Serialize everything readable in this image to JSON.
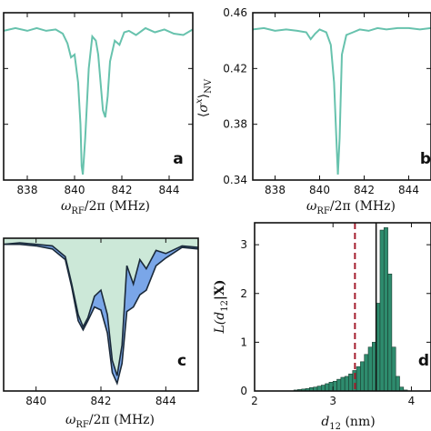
{
  "colors": {
    "teal": "#67c2ad",
    "fill_light": "#cce8d8",
    "fill_blue": "#7aa6e8",
    "bar": "#2e8c6e",
    "dashed_red": "#a51e2e",
    "axis": "#111111"
  },
  "chart_data": [
    {
      "panel": "a",
      "type": "line",
      "letter": "a",
      "xlabel_main": "ω",
      "xlabel_sub": "RF",
      "xlabel_rest": "/2π (MHz)",
      "xticks": [
        838,
        840,
        842,
        844
      ],
      "xtick_labels": [
        "838",
        "840",
        "842",
        "844"
      ],
      "xlim": [
        837,
        845
      ],
      "ylim": [
        0.34,
        0.46
      ],
      "series": [
        {
          "x": [
            837.0,
            837.5,
            838.0,
            838.4,
            838.8,
            839.2,
            839.5,
            839.7,
            839.85,
            840.0,
            840.15,
            840.25,
            840.3,
            840.35,
            840.45,
            840.6,
            840.75,
            840.9,
            841.0,
            841.1,
            841.2,
            841.3,
            841.4,
            841.5,
            841.7,
            841.9,
            842.1,
            842.3,
            842.6,
            843.0,
            843.4,
            843.8,
            844.2,
            844.6,
            845.0
          ],
          "y": [
            0.447,
            0.449,
            0.447,
            0.449,
            0.447,
            0.448,
            0.445,
            0.438,
            0.428,
            0.43,
            0.41,
            0.38,
            0.35,
            0.344,
            0.37,
            0.42,
            0.443,
            0.44,
            0.43,
            0.41,
            0.39,
            0.385,
            0.4,
            0.425,
            0.44,
            0.437,
            0.446,
            0.447,
            0.444,
            0.449,
            0.446,
            0.448,
            0.445,
            0.444,
            0.448
          ]
        }
      ]
    },
    {
      "panel": "b",
      "type": "line",
      "letter": "b",
      "ylabel": "⟨σ^x⟩_NV",
      "ylabel_parts": [
        "⟨",
        "σ",
        "x",
        "⟩",
        "NV"
      ],
      "xlabel_main": "ω",
      "xlabel_sub": "RF",
      "xlabel_rest": "/2π (MHz)",
      "xticks": [
        838,
        840,
        842,
        844
      ],
      "xtick_labels": [
        "838",
        "840",
        "842",
        "844"
      ],
      "yticks": [
        0.34,
        0.38,
        0.42,
        0.46
      ],
      "ytick_labels": [
        "0.34",
        "0.38",
        "0.42",
        "0.46"
      ],
      "xlim": [
        837,
        845
      ],
      "ylim": [
        0.34,
        0.46
      ],
      "series": [
        {
          "x": [
            837.0,
            837.5,
            838.0,
            838.5,
            839.0,
            839.4,
            839.6,
            839.8,
            840.0,
            840.3,
            840.5,
            840.65,
            840.75,
            840.82,
            840.9,
            841.0,
            841.2,
            841.5,
            841.8,
            842.2,
            842.6,
            843.0,
            843.5,
            844.0,
            844.5,
            845.0
          ],
          "y": [
            0.448,
            0.449,
            0.447,
            0.448,
            0.447,
            0.446,
            0.441,
            0.445,
            0.448,
            0.446,
            0.437,
            0.41,
            0.37,
            0.344,
            0.37,
            0.43,
            0.444,
            0.446,
            0.448,
            0.447,
            0.449,
            0.448,
            0.449,
            0.449,
            0.448,
            0.449
          ]
        }
      ]
    },
    {
      "panel": "c",
      "type": "area",
      "letter": "c",
      "xlabel_main": "ω",
      "xlabel_sub": "RF",
      "xlabel_rest": "/2π (MHz)",
      "xticks": [
        840,
        842,
        844
      ],
      "xtick_labels": [
        "840",
        "842",
        "844"
      ],
      "xlim": [
        839,
        845
      ],
      "ylim": [
        0,
        1
      ],
      "series": [
        {
          "name": "upper",
          "x": [
            839.0,
            839.5,
            840.0,
            840.5,
            840.9,
            841.1,
            841.3,
            841.45,
            841.6,
            841.8,
            842.0,
            842.2,
            842.35,
            842.5,
            842.65,
            842.8,
            843.0,
            843.2,
            843.4,
            843.7,
            844.0,
            844.5,
            845.0
          ],
          "y": [
            0.96,
            0.97,
            0.96,
            0.95,
            0.88,
            0.7,
            0.5,
            0.42,
            0.48,
            0.62,
            0.66,
            0.5,
            0.2,
            0.1,
            0.3,
            0.82,
            0.7,
            0.86,
            0.8,
            0.92,
            0.9,
            0.95,
            0.94
          ]
        },
        {
          "name": "lower",
          "x": [
            839.0,
            839.5,
            840.0,
            840.5,
            840.9,
            841.1,
            841.3,
            841.45,
            841.6,
            841.8,
            842.0,
            842.2,
            842.35,
            842.5,
            842.65,
            842.8,
            843.0,
            843.2,
            843.4,
            843.7,
            844.0,
            844.5,
            845.0
          ],
          "y": [
            0.96,
            0.96,
            0.95,
            0.93,
            0.86,
            0.68,
            0.46,
            0.4,
            0.46,
            0.55,
            0.53,
            0.38,
            0.12,
            0.05,
            0.18,
            0.52,
            0.55,
            0.63,
            0.66,
            0.82,
            0.87,
            0.94,
            0.93
          ]
        }
      ]
    },
    {
      "panel": "d",
      "type": "bar",
      "letter": "d",
      "ylabel_main": "L(d",
      "ylabel_sub": "12",
      "ylabel_rest": "|X)",
      "xlabel_main": "d",
      "xlabel_sub": "12",
      "xlabel_rest": " (nm)",
      "xticks": [
        2,
        3,
        4
      ],
      "xtick_labels": [
        "2",
        "3",
        "4"
      ],
      "yticks": [
        0,
        1,
        2,
        3
      ],
      "ytick_labels": [
        "0",
        "1",
        "2",
        "3"
      ],
      "xlim": [
        2,
        4.25
      ],
      "ylim": [
        0,
        3.45
      ],
      "bin_width": 0.05,
      "bins": [
        2.5,
        2.55,
        2.6,
        2.65,
        2.7,
        2.75,
        2.8,
        2.85,
        2.9,
        2.95,
        3.0,
        3.05,
        3.1,
        3.15,
        3.2,
        3.25,
        3.3,
        3.35,
        3.4,
        3.45,
        3.5,
        3.55,
        3.6,
        3.65,
        3.7,
        3.75,
        3.8,
        3.85,
        3.9
      ],
      "values": [
        0.02,
        0.03,
        0.04,
        0.05,
        0.07,
        0.08,
        0.1,
        0.12,
        0.15,
        0.18,
        0.2,
        0.24,
        0.28,
        0.3,
        0.35,
        0.42,
        0.5,
        0.6,
        0.75,
        0.9,
        1.0,
        1.8,
        3.3,
        3.35,
        2.4,
        0.9,
        0.3,
        0.08,
        0.02
      ],
      "dashed_line_x": 3.28,
      "solid_line_x": 3.55
    }
  ]
}
